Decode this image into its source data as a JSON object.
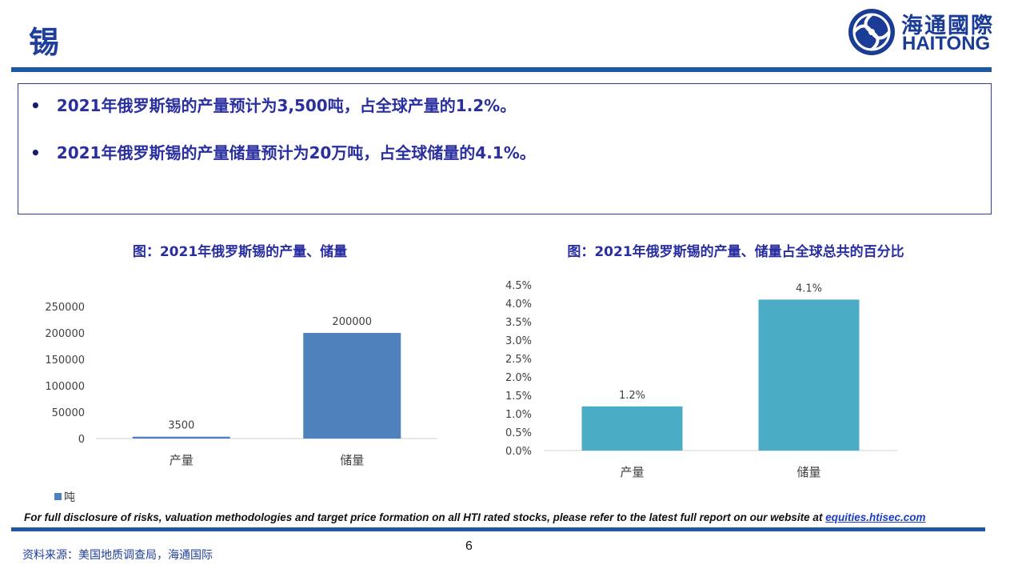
{
  "page": {
    "title": "锡",
    "logo_cn": "海通國際",
    "logo_en": "HAITONG",
    "bullets": [
      "2021年俄罗斯锡的产量预计为3,500吨，占全球产量的1.2%。",
      "2021年俄罗斯锡的产量储量预计为20万吨，占全球储量的4.1%。"
    ],
    "disclaimer": "For full disclosure of risks, valuation methodologies and target price formation on all HTI rated stocks, please refer to the latest full report on our website at ",
    "disclaimer_link": "equities.htisec.com",
    "source": "资料来源：美国地质调查局，海通国际",
    "page_number": "6",
    "colors": {
      "brand": "#1f58a0",
      "bar_left": "#4f81bd",
      "bar_right": "#4bacc6"
    }
  },
  "chart_data": [
    {
      "type": "bar",
      "title": "图：2021年俄罗斯锡的产量、储量",
      "categories": [
        "产量",
        "储量"
      ],
      "series": [
        {
          "name": "吨",
          "values": [
            3500,
            200000
          ]
        }
      ],
      "data_labels": [
        "3500",
        "200000"
      ],
      "ylim": [
        0,
        250000
      ],
      "yticks": [
        0,
        50000,
        100000,
        150000,
        200000,
        250000
      ],
      "ytick_labels": [
        "0",
        "50000",
        "100000",
        "150000",
        "200000",
        "250000"
      ],
      "legend": "bottom-left",
      "grid": false
    },
    {
      "type": "bar",
      "title": "图：2021年俄罗斯锡的产量、储量占全球总共的百分比",
      "categories": [
        "产量",
        "储量"
      ],
      "series": [
        {
          "values": [
            1.2,
            4.1
          ]
        }
      ],
      "data_labels": [
        "1.2%",
        "4.1%"
      ],
      "ylim": [
        0,
        4.5
      ],
      "yticks": [
        0,
        0.5,
        1.0,
        1.5,
        2.0,
        2.5,
        3.0,
        3.5,
        4.0,
        4.5
      ],
      "ytick_labels": [
        "0.0%",
        "0.5%",
        "1.0%",
        "1.5%",
        "2.0%",
        "2.5%",
        "3.0%",
        "3.5%",
        "4.0%",
        "4.5%"
      ],
      "grid": false
    }
  ]
}
